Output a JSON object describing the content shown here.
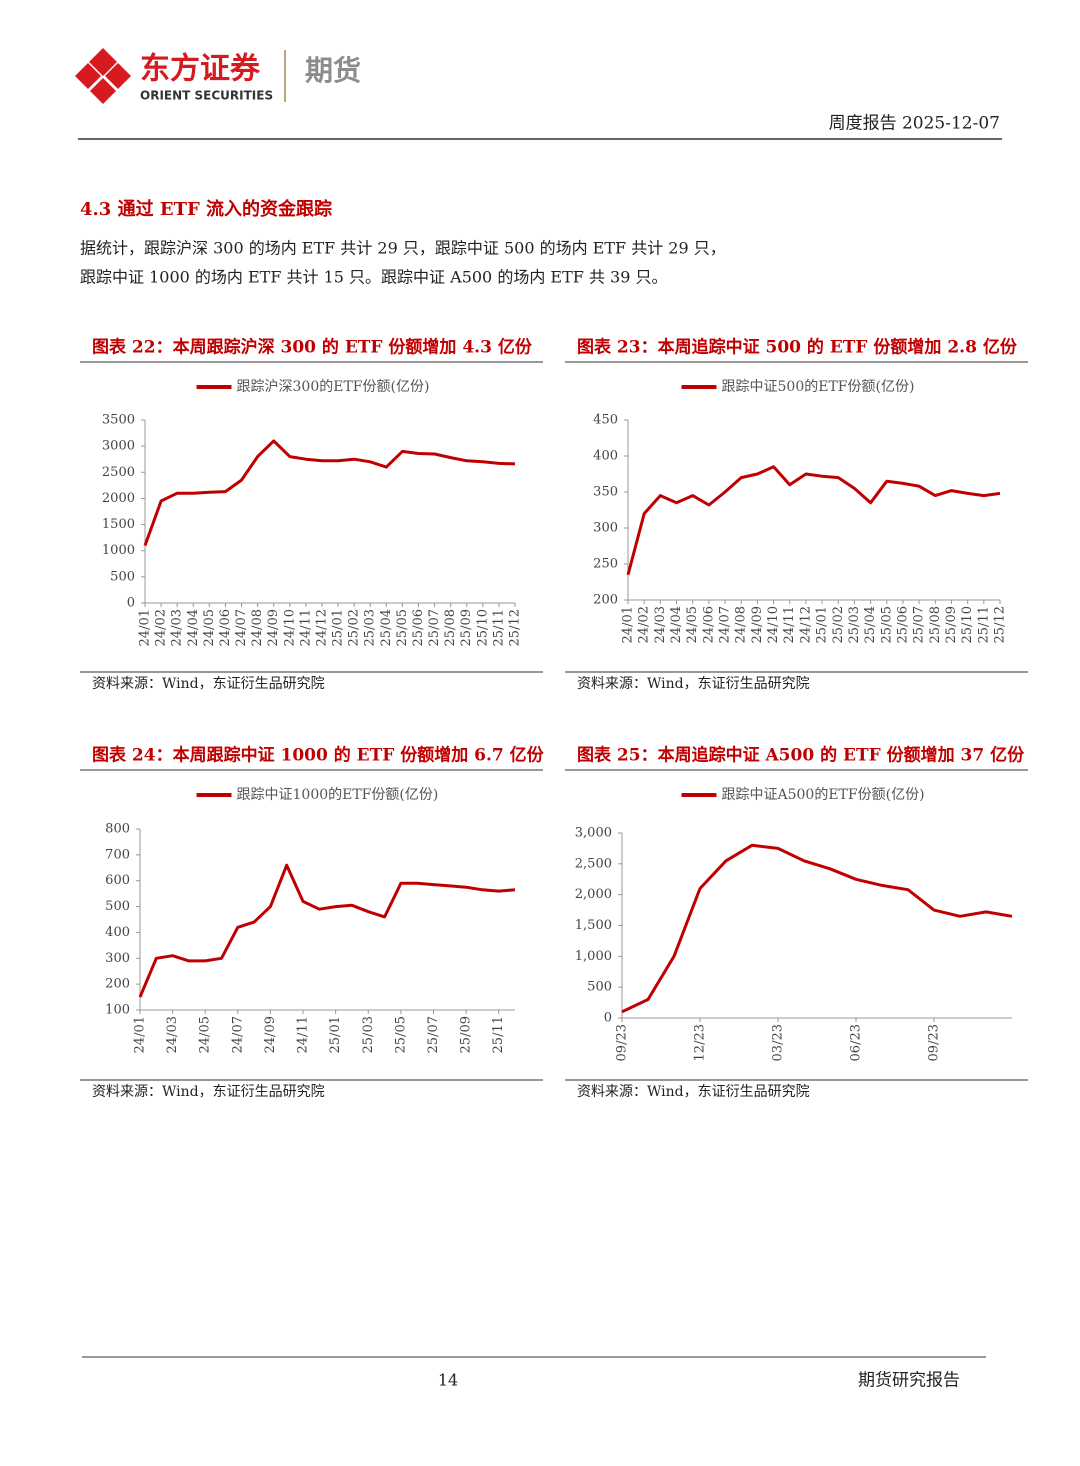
{
  "header": {
    "brand_cn": "东方证券",
    "brand_en": "ORIENT SECURITIES",
    "division": "期货",
    "report": "周度报告 2025-12-07"
  },
  "section": {
    "heading": "4.3 通过 ETF 流入的资金跟踪",
    "paragraph": [
      "据统计，跟踪沪深 300 的场内 ETF 共计 29 只，跟踪中证 500 的场内 ETF 共计 29 只，",
      "跟踪中证 1000 的场内 ETF 共计 15 只。跟踪中证 A500 的场内 ETF 共 39 只。"
    ]
  },
  "chart_data": [
    {
      "type": "line",
      "title": "图表 22：本周跟踪沪深 300 的 ETF 份额增加 4.3 亿份",
      "categories": [
        "24/01",
        "24/02",
        "24/03",
        "24/04",
        "24/05",
        "24/06",
        "24/07",
        "24/08",
        "24/09",
        "24/10",
        "24/11",
        "24/12",
        "25/01",
        "25/02",
        "25/03",
        "25/04",
        "25/05",
        "25/06",
        "25/07",
        "25/08",
        "25/09",
        "25/10",
        "25/11",
        "25/12"
      ],
      "series": [
        {
          "name": "跟踪沪深300的ETF份额(亿份)",
          "color": "#c00000",
          "values": [
            1100,
            1950,
            2100,
            2100,
            2120,
            2130,
            2350,
            2800,
            3100,
            2800,
            2750,
            2720,
            2720,
            2750,
            2700,
            2600,
            2900,
            2860,
            2850,
            2780,
            2720,
            2700,
            2670,
            2660
          ]
        }
      ],
      "ylim": [
        0,
        3500
      ],
      "yticks": [
        0,
        500,
        1000,
        1500,
        2000,
        2500,
        3000,
        3500
      ],
      "source": "资料来源：Wind，东证衍生品研究院"
    },
    {
      "type": "line",
      "title": "图表 23：本周追踪中证 500 的 ETF 份额增加 2.8 亿份",
      "categories": [
        "24/01",
        "24/02",
        "24/03",
        "24/04",
        "24/05",
        "24/06",
        "24/07",
        "24/08",
        "24/09",
        "24/10",
        "24/11",
        "24/12",
        "25/01",
        "25/02",
        "25/03",
        "25/04",
        "25/05",
        "25/06",
        "25/07",
        "25/08",
        "25/09",
        "25/10",
        "25/11",
        "25/12"
      ],
      "series": [
        {
          "name": "跟踪中证500的ETF份额(亿份)",
          "color": "#c00000",
          "values": [
            235,
            320,
            345,
            335,
            345,
            332,
            350,
            370,
            375,
            385,
            360,
            375,
            372,
            370,
            355,
            335,
            365,
            362,
            358,
            345,
            352,
            348,
            345,
            348
          ]
        }
      ],
      "ylim": [
        200,
        450
      ],
      "yticks": [
        200,
        250,
        300,
        350,
        400,
        450
      ],
      "source": "资料来源：Wind，东证衍生品研究院"
    },
    {
      "type": "line",
      "title": "图表 24：本周跟踪中证 1000 的 ETF 份额增加 6.7 亿份",
      "categories": [
        "24/01",
        null,
        "24/03",
        null,
        "24/05",
        null,
        "24/07",
        null,
        "24/09",
        null,
        "24/11",
        null,
        "25/01",
        null,
        "25/03",
        null,
        "25/05",
        null,
        "25/07",
        null,
        "25/09",
        null,
        "25/11",
        null
      ],
      "series": [
        {
          "name": "跟踪中证1000的ETF份额(亿份)",
          "color": "#c00000",
          "values": [
            150,
            300,
            310,
            290,
            290,
            300,
            420,
            440,
            500,
            660,
            520,
            490,
            500,
            505,
            480,
            460,
            590,
            590,
            585,
            580,
            575,
            565,
            560,
            565
          ]
        }
      ],
      "ylim": [
        100,
        800
      ],
      "yticks": [
        100,
        200,
        300,
        400,
        500,
        600,
        700,
        800
      ],
      "source": "资料来源：Wind，东证衍生品研究院"
    },
    {
      "type": "line",
      "title": "图表 25：本周追踪中证 A500 的 ETF 份额增加 37 亿份",
      "categories": [
        "09/23",
        null,
        null,
        "12/23",
        null,
        null,
        "03/23",
        null,
        null,
        "06/23",
        null,
        null,
        "09/23",
        null,
        null,
        null
      ],
      "series": [
        {
          "name": "跟踪中证A500的ETF份额(亿份)",
          "color": "#c00000",
          "values": [
            100,
            300,
            1000,
            2100,
            2550,
            2800,
            2750,
            2550,
            2420,
            2250,
            2150,
            2080,
            1750,
            1650,
            1720,
            1650
          ]
        }
      ],
      "ylim": [
        0,
        3000
      ],
      "yticks": [
        0,
        500,
        {
          "value": 1000,
          "label": "1,000"
        },
        {
          "value": 1500,
          "label": "1,500"
        },
        {
          "value": 2000,
          "label": "2,000"
        },
        {
          "value": 2500,
          "label": "2,500"
        },
        {
          "value": 3000,
          "label": "3,000"
        }
      ],
      "source": "资料来源：Wind，东证衍生品研究院"
    }
  ],
  "footer": {
    "page": "14",
    "label": "期货研究报告"
  }
}
